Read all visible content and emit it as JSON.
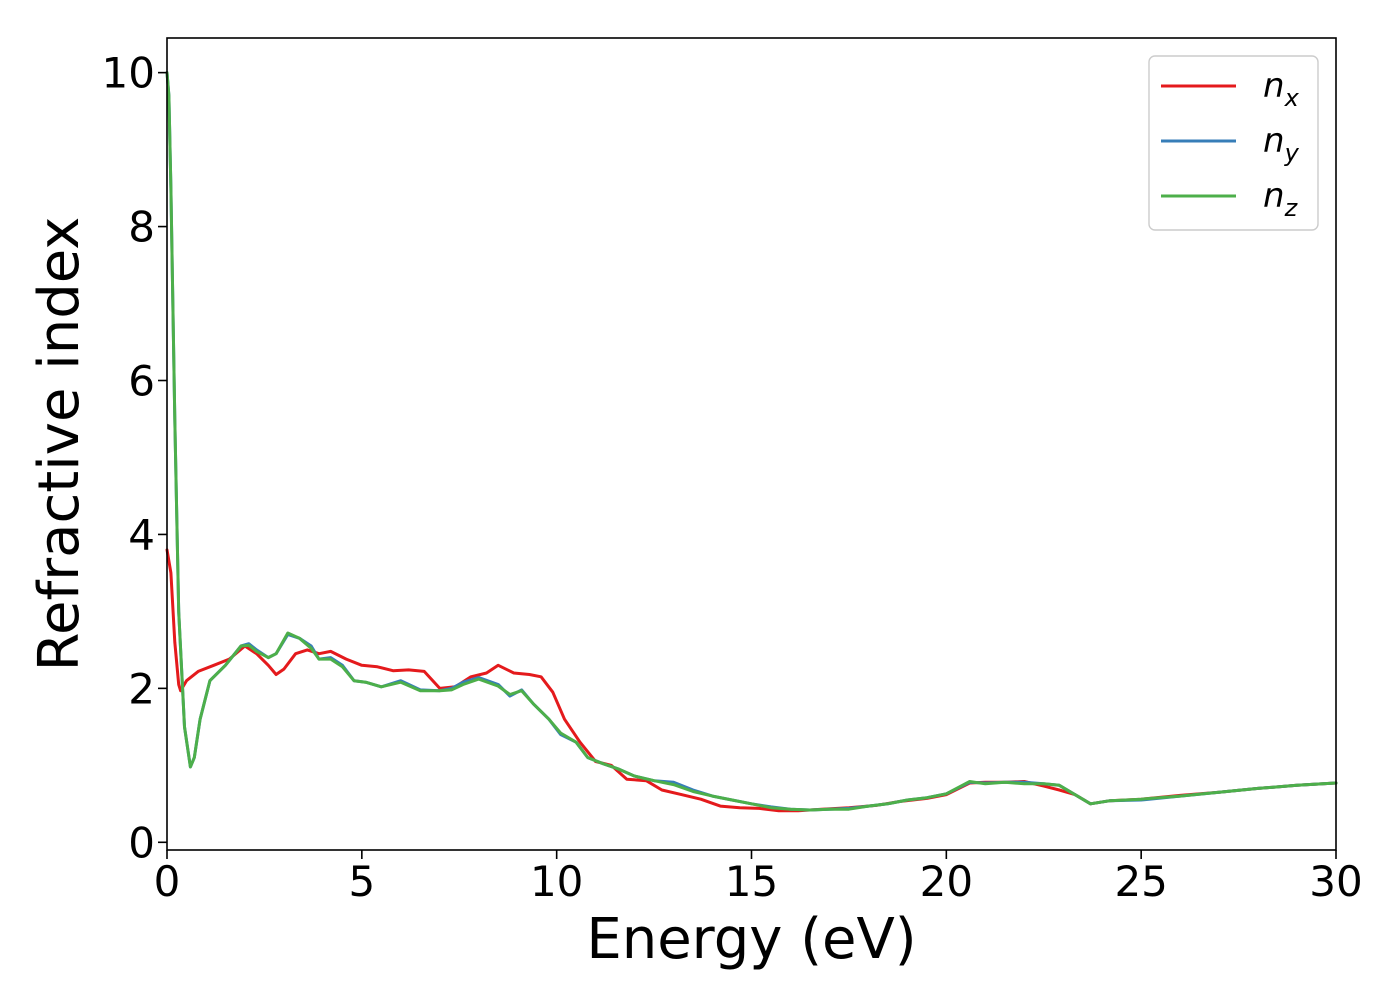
{
  "chart_data": {
    "type": "line",
    "xlabel": "Energy (eV)",
    "ylabel": "Refractive index",
    "xlim": [
      0,
      30
    ],
    "ylim": [
      -0.1,
      10.45
    ],
    "xticks": [
      0,
      5,
      10,
      15,
      20,
      25,
      30
    ],
    "yticks": [
      0,
      2,
      4,
      6,
      8,
      10
    ],
    "xtick_labels": [
      "0",
      "5",
      "10",
      "15",
      "20",
      "25",
      "30"
    ],
    "ytick_labels": [
      "0",
      "2",
      "4",
      "6",
      "8",
      "10"
    ],
    "grid": false,
    "legend_position": "top-right",
    "series": [
      {
        "name": "n",
        "subscript": "x",
        "color": "#e41a1c",
        "points": [
          [
            0,
            3.8
          ],
          [
            0.1,
            3.5
          ],
          [
            0.2,
            2.6
          ],
          [
            0.3,
            2.05
          ],
          [
            0.35,
            1.97
          ],
          [
            0.5,
            2.1
          ],
          [
            0.8,
            2.22
          ],
          [
            1.2,
            2.3
          ],
          [
            1.6,
            2.38
          ],
          [
            2.0,
            2.55
          ],
          [
            2.3,
            2.45
          ],
          [
            2.6,
            2.3
          ],
          [
            2.8,
            2.18
          ],
          [
            3.0,
            2.25
          ],
          [
            3.3,
            2.45
          ],
          [
            3.6,
            2.5
          ],
          [
            3.9,
            2.45
          ],
          [
            4.2,
            2.48
          ],
          [
            4.6,
            2.38
          ],
          [
            5.0,
            2.3
          ],
          [
            5.4,
            2.28
          ],
          [
            5.8,
            2.23
          ],
          [
            6.2,
            2.24
          ],
          [
            6.6,
            2.22
          ],
          [
            7.0,
            2.0
          ],
          [
            7.4,
            2.02
          ],
          [
            7.8,
            2.15
          ],
          [
            8.2,
            2.2
          ],
          [
            8.5,
            2.3
          ],
          [
            8.9,
            2.2
          ],
          [
            9.3,
            2.18
          ],
          [
            9.6,
            2.15
          ],
          [
            9.9,
            1.95
          ],
          [
            10.2,
            1.6
          ],
          [
            10.6,
            1.3
          ],
          [
            11.0,
            1.05
          ],
          [
            11.4,
            1.0
          ],
          [
            11.8,
            0.82
          ],
          [
            12.3,
            0.8
          ],
          [
            12.7,
            0.68
          ],
          [
            13.2,
            0.62
          ],
          [
            13.7,
            0.56
          ],
          [
            14.2,
            0.47
          ],
          [
            14.7,
            0.45
          ],
          [
            15.2,
            0.44
          ],
          [
            15.7,
            0.41
          ],
          [
            16.2,
            0.41
          ],
          [
            16.8,
            0.43
          ],
          [
            17.5,
            0.45
          ],
          [
            18.2,
            0.48
          ],
          [
            18.8,
            0.53
          ],
          [
            19.5,
            0.57
          ],
          [
            20.0,
            0.62
          ],
          [
            20.6,
            0.77
          ],
          [
            21.0,
            0.78
          ],
          [
            21.5,
            0.78
          ],
          [
            22.0,
            0.79
          ],
          [
            22.5,
            0.73
          ],
          [
            22.9,
            0.68
          ],
          [
            23.3,
            0.62
          ],
          [
            23.7,
            0.5
          ],
          [
            24.2,
            0.54
          ],
          [
            25,
            0.56
          ],
          [
            26,
            0.61
          ],
          [
            27,
            0.65
          ],
          [
            28,
            0.7
          ],
          [
            29,
            0.74
          ],
          [
            30,
            0.77
          ]
        ]
      },
      {
        "name": "n",
        "subscript": "y",
        "color": "#377eb8",
        "points": [
          [
            0,
            10.0
          ],
          [
            0.05,
            9.7
          ],
          [
            0.1,
            8.5
          ],
          [
            0.2,
            5.5
          ],
          [
            0.3,
            3.0
          ],
          [
            0.45,
            1.5
          ],
          [
            0.6,
            0.98
          ],
          [
            0.7,
            1.1
          ],
          [
            0.85,
            1.6
          ],
          [
            1.1,
            2.1
          ],
          [
            1.5,
            2.3
          ],
          [
            1.9,
            2.55
          ],
          [
            2.1,
            2.58
          ],
          [
            2.3,
            2.5
          ],
          [
            2.6,
            2.4
          ],
          [
            2.8,
            2.45
          ],
          [
            3.1,
            2.7
          ],
          [
            3.4,
            2.65
          ],
          [
            3.7,
            2.55
          ],
          [
            3.9,
            2.38
          ],
          [
            4.2,
            2.4
          ],
          [
            4.5,
            2.3
          ],
          [
            4.8,
            2.1
          ],
          [
            5.1,
            2.08
          ],
          [
            5.5,
            2.02
          ],
          [
            6.0,
            2.1
          ],
          [
            6.5,
            1.98
          ],
          [
            7.0,
            1.97
          ],
          [
            7.3,
            2.0
          ],
          [
            7.6,
            2.08
          ],
          [
            8.0,
            2.14
          ],
          [
            8.5,
            2.05
          ],
          [
            8.8,
            1.9
          ],
          [
            9.1,
            1.98
          ],
          [
            9.4,
            1.8
          ],
          [
            9.8,
            1.6
          ],
          [
            10.1,
            1.4
          ],
          [
            10.5,
            1.3
          ],
          [
            10.8,
            1.1
          ],
          [
            11.2,
            1.02
          ],
          [
            11.6,
            0.95
          ],
          [
            12.0,
            0.86
          ],
          [
            12.5,
            0.8
          ],
          [
            13.0,
            0.78
          ],
          [
            13.5,
            0.68
          ],
          [
            14.0,
            0.6
          ],
          [
            14.5,
            0.55
          ],
          [
            15.0,
            0.5
          ],
          [
            15.5,
            0.46
          ],
          [
            16.0,
            0.43
          ],
          [
            16.5,
            0.42
          ],
          [
            17.0,
            0.43
          ],
          [
            17.5,
            0.44
          ],
          [
            18.0,
            0.47
          ],
          [
            18.5,
            0.5
          ],
          [
            19.0,
            0.55
          ],
          [
            19.5,
            0.58
          ],
          [
            20.0,
            0.63
          ],
          [
            20.6,
            0.78
          ],
          [
            21.0,
            0.77
          ],
          [
            21.5,
            0.78
          ],
          [
            22.0,
            0.78
          ],
          [
            22.5,
            0.76
          ],
          [
            22.9,
            0.74
          ],
          [
            23.3,
            0.62
          ],
          [
            23.7,
            0.5
          ],
          [
            24.2,
            0.54
          ],
          [
            25,
            0.55
          ],
          [
            26,
            0.6
          ],
          [
            27,
            0.65
          ],
          [
            28,
            0.7
          ],
          [
            29,
            0.74
          ],
          [
            30,
            0.77
          ]
        ]
      },
      {
        "name": "n",
        "subscript": "z",
        "color": "#4daf4a",
        "points": [
          [
            0,
            10.0
          ],
          [
            0.05,
            9.7
          ],
          [
            0.1,
            8.5
          ],
          [
            0.2,
            5.5
          ],
          [
            0.3,
            3.0
          ],
          [
            0.45,
            1.5
          ],
          [
            0.6,
            0.98
          ],
          [
            0.7,
            1.1
          ],
          [
            0.85,
            1.6
          ],
          [
            1.1,
            2.1
          ],
          [
            1.5,
            2.3
          ],
          [
            1.9,
            2.55
          ],
          [
            2.1,
            2.56
          ],
          [
            2.3,
            2.48
          ],
          [
            2.6,
            2.4
          ],
          [
            2.8,
            2.45
          ],
          [
            3.1,
            2.72
          ],
          [
            3.4,
            2.65
          ],
          [
            3.7,
            2.52
          ],
          [
            3.9,
            2.38
          ],
          [
            4.2,
            2.38
          ],
          [
            4.5,
            2.28
          ],
          [
            4.8,
            2.1
          ],
          [
            5.1,
            2.08
          ],
          [
            5.5,
            2.02
          ],
          [
            6.0,
            2.08
          ],
          [
            6.5,
            1.97
          ],
          [
            7.0,
            1.97
          ],
          [
            7.3,
            1.98
          ],
          [
            7.6,
            2.05
          ],
          [
            8.0,
            2.12
          ],
          [
            8.5,
            2.03
          ],
          [
            8.8,
            1.92
          ],
          [
            9.1,
            1.97
          ],
          [
            9.4,
            1.8
          ],
          [
            9.8,
            1.6
          ],
          [
            10.1,
            1.42
          ],
          [
            10.5,
            1.3
          ],
          [
            10.8,
            1.1
          ],
          [
            11.2,
            1.02
          ],
          [
            11.6,
            0.95
          ],
          [
            12.0,
            0.86
          ],
          [
            12.5,
            0.8
          ],
          [
            13.0,
            0.75
          ],
          [
            13.5,
            0.66
          ],
          [
            14.0,
            0.6
          ],
          [
            14.5,
            0.55
          ],
          [
            15.0,
            0.5
          ],
          [
            15.5,
            0.45
          ],
          [
            16.0,
            0.43
          ],
          [
            16.5,
            0.42
          ],
          [
            17.0,
            0.43
          ],
          [
            17.5,
            0.43
          ],
          [
            18.0,
            0.47
          ],
          [
            18.5,
            0.5
          ],
          [
            19.0,
            0.55
          ],
          [
            19.5,
            0.58
          ],
          [
            20.0,
            0.63
          ],
          [
            20.6,
            0.79
          ],
          [
            21.0,
            0.76
          ],
          [
            21.5,
            0.78
          ],
          [
            22.0,
            0.76
          ],
          [
            22.5,
            0.76
          ],
          [
            22.9,
            0.74
          ],
          [
            23.3,
            0.62
          ],
          [
            23.7,
            0.5
          ],
          [
            24.2,
            0.54
          ],
          [
            25,
            0.56
          ],
          [
            26,
            0.6
          ],
          [
            27,
            0.65
          ],
          [
            28,
            0.7
          ],
          [
            29,
            0.74
          ],
          [
            30,
            0.77
          ]
        ]
      }
    ]
  }
}
